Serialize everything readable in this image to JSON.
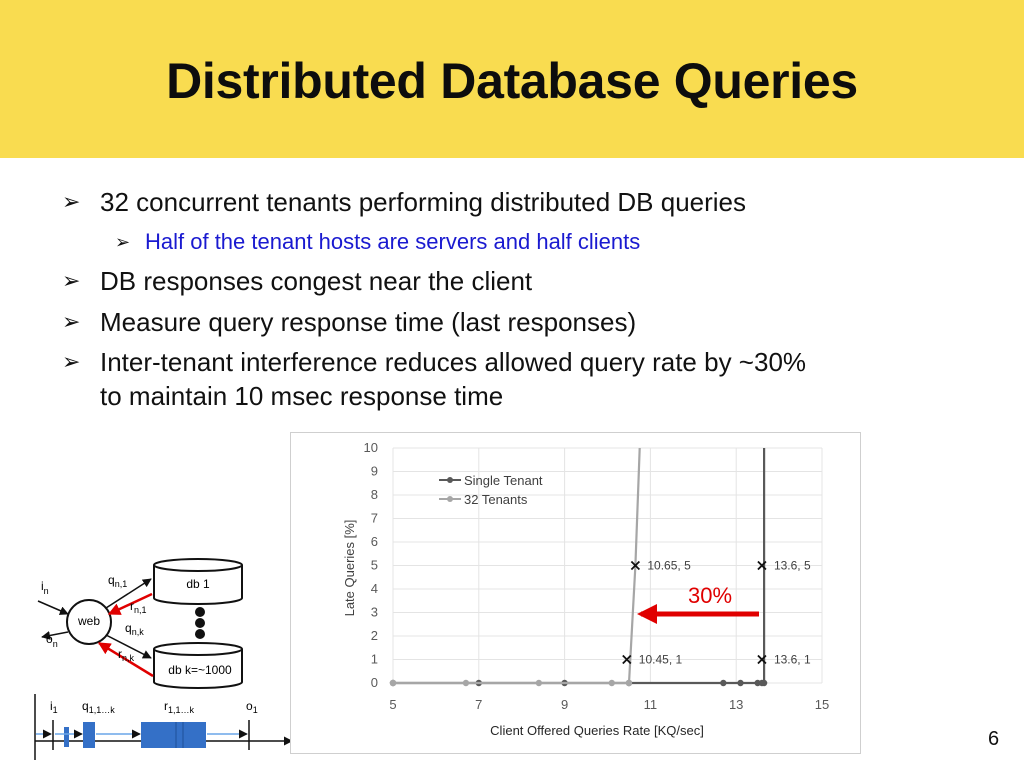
{
  "slide": {
    "title": "Distributed Database Queries",
    "page_number": "6"
  },
  "bullets": [
    {
      "text": "32 concurrent tenants performing distributed DB queries"
    },
    {
      "sub": "Half of the tenant hosts are servers and half clients"
    },
    {
      "text": "DB responses congest near the client"
    },
    {
      "text": "Measure query response time (last responses)"
    },
    {
      "text": "Inter-tenant interference reduces allowed query rate by ~30%"
    },
    {
      "text": "to maintain 10 msec response time"
    }
  ],
  "diagram": {
    "in_label_main": "i",
    "in_label_sub": "n",
    "out_label_main": "o",
    "out_label_sub": "n",
    "web_label": "web",
    "db1_label": "db 1",
    "dbk_label": "db k=~1000",
    "q_n1_main": "q",
    "q_n1_sub": "n,1",
    "r_n1_main": "r",
    "r_n1_sub": "n,1",
    "q_nk_main": "q",
    "q_nk_sub": "n,k",
    "r_nk_main": "r",
    "r_nk_sub": "n,k",
    "timeline": {
      "i1_main": "i",
      "i1_sub": "1",
      "q_main": "q",
      "q_sub": "1,1…k",
      "r_main": "r",
      "r_sub": "1,1…k",
      "o1_main": "o",
      "o1_sub": "1"
    }
  },
  "chart_data": {
    "type": "line",
    "xlabel": "Client Offered Queries Rate [KQ/sec]",
    "ylabel": "Late Queries [%]",
    "xlim": [
      5,
      15
    ],
    "ylim": [
      0,
      10
    ],
    "x_ticks": [
      "5",
      "7",
      "9",
      "11",
      "13",
      "15"
    ],
    "y_ticks": [
      "0",
      "1",
      "2",
      "3",
      "4",
      "5",
      "6",
      "7",
      "8",
      "9",
      "10"
    ],
    "grid": true,
    "legend_position": "top-left",
    "series": [
      {
        "name": "Single Tenant",
        "color": "#595959",
        "points": [
          [
            5,
            0
          ],
          [
            7,
            0
          ],
          [
            9,
            0
          ],
          [
            10.5,
            0
          ],
          [
            12.7,
            0
          ],
          [
            13.1,
            0
          ],
          [
            13.5,
            0
          ],
          [
            13.6,
            0
          ],
          [
            13.65,
            0
          ],
          [
            13.65,
            10
          ]
        ]
      },
      {
        "name": "32 Tenants",
        "color": "#a6a6a6",
        "points": [
          [
            5,
            0
          ],
          [
            6.7,
            0
          ],
          [
            8.4,
            0
          ],
          [
            10.1,
            0
          ],
          [
            10.5,
            0
          ],
          [
            10.65,
            5
          ],
          [
            10.75,
            10
          ]
        ]
      }
    ],
    "annotations": [
      {
        "label": "10.65, 5",
        "x": 10.65,
        "y": 5
      },
      {
        "label": "13.6, 5",
        "x": 13.6,
        "y": 5
      },
      {
        "label": "10.45, 1",
        "x": 10.45,
        "y": 1
      },
      {
        "label": "13.6, 1",
        "x": 13.6,
        "y": 1
      }
    ],
    "callout": {
      "label": "30%",
      "color": "#e00000"
    }
  }
}
